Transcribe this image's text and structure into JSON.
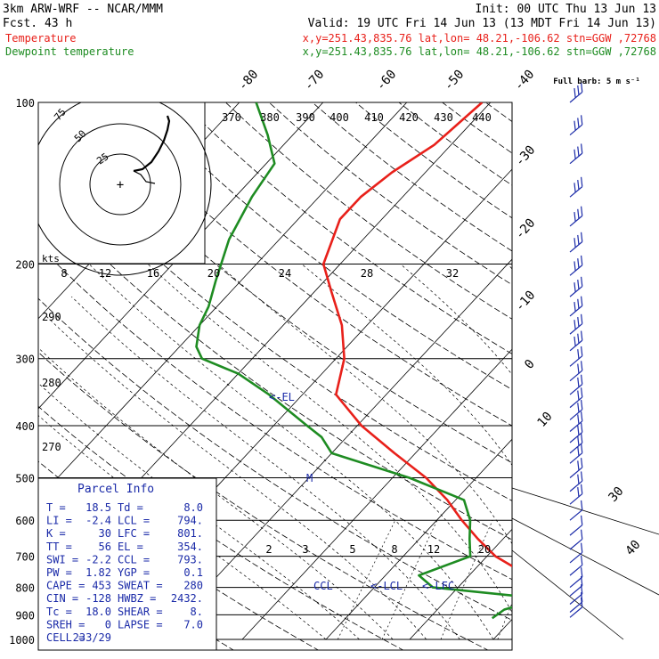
{
  "header": {
    "model": "3km ARW-WRF -- NCAR/MMM",
    "init": "Init: 00 UTC Thu 13 Jun 13",
    "fcst": "Fcst.   43 h",
    "valid": "Valid: 19 UTC Fri 14 Jun 13 (13 MDT Fri 14 Jun 13)",
    "temp_label": "Temperature",
    "dew_label": "Dewpoint temperature",
    "info": "x,y=251.43,835.76   lat,lon= 48.21,-106.62  stn=GGW ,72768"
  },
  "colors": {
    "temperature": "#e8201a",
    "dewpoint": "#1e8c22",
    "annotation": "#1a2aa8",
    "grid": "#000000"
  },
  "chart_data": {
    "type": "line",
    "title": "",
    "xlabel": "",
    "ylabel": "",
    "y_scale": "log",
    "ylim": [
      1000,
      100
    ],
    "pressure_ticks": [
      "100",
      "200",
      "300",
      "400",
      "500",
      "600",
      "700",
      "800",
      "900",
      "1000"
    ],
    "isotherm_labels": [
      "-80",
      "-70",
      "-60",
      "-50",
      "-40",
      "-30",
      "-20",
      "-10",
      "0",
      "10",
      "30",
      "40"
    ],
    "theta_e_labels": [
      "370",
      "380",
      "390",
      "400",
      "410",
      "420",
      "430",
      "440"
    ],
    "theta_labels": [
      "290",
      "280",
      "270"
    ],
    "mixing_ratio_labels": [
      "2",
      "3",
      "5",
      "8",
      "12",
      "20"
    ],
    "hodo_speed_labels": [
      "8",
      "12",
      "16",
      "20",
      "24",
      "28",
      "32"
    ],
    "hodo": {
      "units": "kts",
      "rings": [
        "75",
        "50",
        "25"
      ]
    },
    "series": [
      {
        "name": "Temperature",
        "points": [
          [
            913,
            25.0
          ],
          [
            880,
            20.5
          ],
          [
            850,
            17.5
          ],
          [
            800,
            11.0
          ],
          [
            760,
            7.0
          ],
          [
            700,
            1.0
          ],
          [
            650,
            -3.0
          ],
          [
            600,
            -7.0
          ],
          [
            550,
            -11.0
          ],
          [
            500,
            -16.0
          ],
          [
            450,
            -22.5
          ],
          [
            400,
            -29.5
          ],
          [
            380,
            -32.0
          ],
          [
            350,
            -36.0
          ],
          [
            300,
            -39.0
          ],
          [
            260,
            -43.0
          ],
          [
            225,
            -48.0
          ],
          [
            200,
            -52.0
          ],
          [
            165,
            -55.0
          ],
          [
            150,
            -55.0
          ],
          [
            135,
            -54.0
          ],
          [
            120,
            -52.0
          ],
          [
            100,
            -51.0
          ]
        ]
      },
      {
        "name": "Dewpoint temperature",
        "points": [
          [
            913,
            7.5
          ],
          [
            880,
            8.0
          ],
          [
            855,
            10.0
          ],
          [
            830,
            8.0
          ],
          [
            800,
            -3.0
          ],
          [
            760,
            -6.0
          ],
          [
            700,
            -2.0
          ],
          [
            650,
            -4.0
          ],
          [
            600,
            -6.0
          ],
          [
            550,
            -9.0
          ],
          [
            500,
            -18.0
          ],
          [
            450,
            -30.0
          ],
          [
            420,
            -33.0
          ],
          [
            400,
            -36.0
          ],
          [
            350,
            -44.0
          ],
          [
            320,
            -50.0
          ],
          [
            300,
            -56.0
          ],
          [
            285,
            -58.0
          ],
          [
            260,
            -60.0
          ],
          [
            240,
            -61.0
          ],
          [
            215,
            -63.0
          ],
          [
            180,
            -66.0
          ],
          [
            150,
            -68.0
          ],
          [
            130,
            -69.0
          ],
          [
            115,
            -73.0
          ],
          [
            100,
            -78.0
          ]
        ]
      }
    ],
    "annotations": [
      "<-EL",
      "M",
      "CCL",
      "<-LCL",
      "<-LFC"
    ],
    "wind_barb_label": "Full barb: 5 m s⁻¹"
  },
  "parcel_info": {
    "title": "Parcel Info",
    "rows": [
      [
        "T  =",
        "18.5",
        "Td =",
        "8.0"
      ],
      [
        "LI =",
        "-2.4",
        "LCL =",
        "794."
      ],
      [
        "K  =",
        "30",
        "LFC =",
        "801."
      ],
      [
        "TT =",
        "56",
        "EL =",
        "354."
      ],
      [
        "SWI =",
        "-2.2",
        "CCL =",
        "793."
      ],
      [
        "PW =",
        "1.82",
        "YGP =",
        "0.1"
      ],
      [
        "CAPE =",
        "453",
        "SWEAT =",
        "280"
      ],
      [
        "CIN =",
        "-128",
        "HWBZ =",
        "2432."
      ],
      [
        "Tc =",
        "18.0",
        "SHEAR =",
        "8."
      ],
      [
        "SREH =",
        "0",
        "LAPSE =",
        "7.0"
      ],
      [
        "CELL =",
        "233/29",
        "",
        ""
      ]
    ]
  }
}
